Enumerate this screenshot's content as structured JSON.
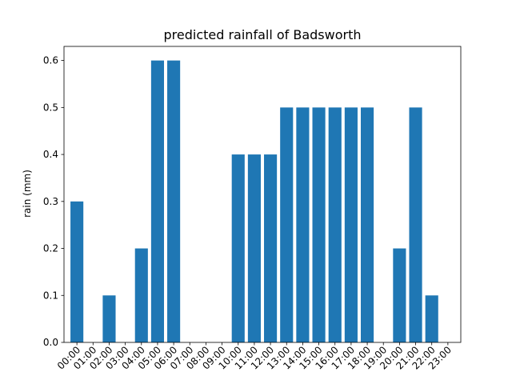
{
  "chart_data": {
    "type": "bar",
    "title": "predicted rainfall of Badsworth",
    "xlabel": "",
    "ylabel": "rain (mm)",
    "categories": [
      "00:00",
      "01:00",
      "02:00",
      "03:00",
      "04:00",
      "05:00",
      "06:00",
      "07:00",
      "08:00",
      "09:00",
      "10:00",
      "11:00",
      "12:00",
      "13:00",
      "14:00",
      "15:00",
      "16:00",
      "17:00",
      "18:00",
      "19:00",
      "20:00",
      "21:00",
      "22:00",
      "23:00"
    ],
    "values": [
      0.3,
      0,
      0.1,
      0,
      0.2,
      0.6,
      0.6,
      0,
      0,
      0,
      0.4,
      0.4,
      0.4,
      0.5,
      0.5,
      0.5,
      0.5,
      0.5,
      0.5,
      0,
      0.2,
      0.5,
      0.1,
      0
    ],
    "ylim": [
      0,
      0.63
    ],
    "yticks": [
      "0.0",
      "0.1",
      "0.2",
      "0.3",
      "0.4",
      "0.5",
      "0.6"
    ],
    "bar_color": "#1f77b4",
    "grid": false,
    "legend": "none"
  }
}
